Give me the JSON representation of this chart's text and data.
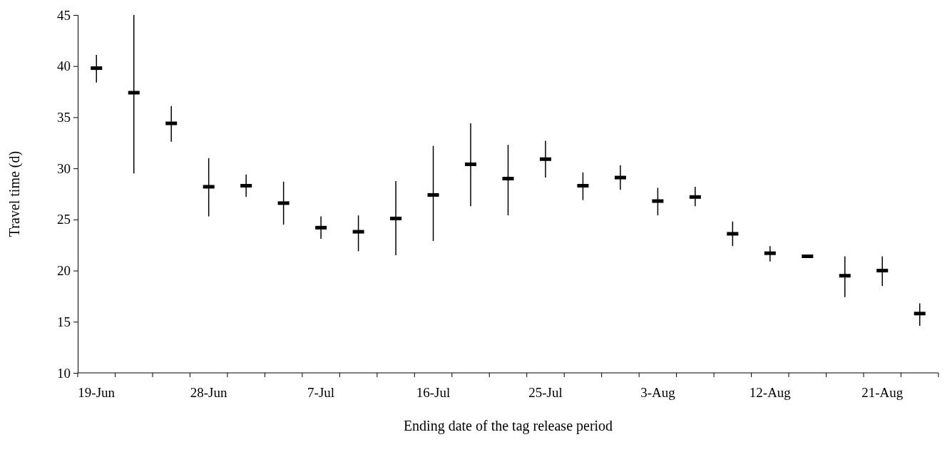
{
  "chart_data": {
    "type": "scatter",
    "xlabel": "Ending date of the tag release period",
    "ylabel": "Travel time (d)",
    "categories": [
      "19-Jun",
      null,
      null,
      "28-Jun",
      null,
      null,
      "7-Jul",
      null,
      null,
      "16-Jul",
      null,
      null,
      "25-Jul",
      null,
      null,
      "3-Aug",
      null,
      null,
      "12-Aug",
      null,
      null,
      "21-Aug",
      null
    ],
    "series": [
      {
        "color": "#000000",
        "values": [
          39.8,
          37.4,
          34.4,
          28.2,
          28.3,
          26.6,
          24.2,
          23.8,
          25.1,
          27.4,
          30.4,
          29.0,
          30.9,
          28.3,
          29.1,
          26.8,
          27.2,
          23.6,
          21.7,
          21.4,
          19.5,
          20.0,
          15.8
        ],
        "errors": [
          [
            38.4,
            41.1
          ],
          [
            29.5,
            45
          ],
          [
            32.6,
            36.1
          ],
          [
            25.3,
            31.0
          ],
          [
            27.2,
            29.4
          ],
          [
            24.5,
            28.7
          ],
          [
            23.1,
            25.3
          ],
          [
            21.9,
            25.4
          ],
          [
            21.5,
            28.75
          ],
          [
            22.9,
            32.2
          ],
          [
            26.3,
            34.4
          ],
          [
            25.4,
            32.3
          ],
          [
            29.1,
            32.7
          ],
          [
            26.9,
            29.6
          ],
          [
            27.9,
            30.3
          ],
          [
            25.4,
            28.1
          ],
          [
            26.3,
            28.2
          ],
          [
            22.4,
            24.8
          ],
          [
            20.9,
            22.4
          ],
          null,
          [
            17.4,
            21.4
          ],
          [
            18.5,
            21.4
          ],
          [
            14.6,
            16.8
          ]
        ]
      }
    ],
    "ylim": [
      10,
      45
    ],
    "yticks": [
      10,
      15,
      20,
      25,
      30,
      35,
      40,
      45
    ]
  }
}
